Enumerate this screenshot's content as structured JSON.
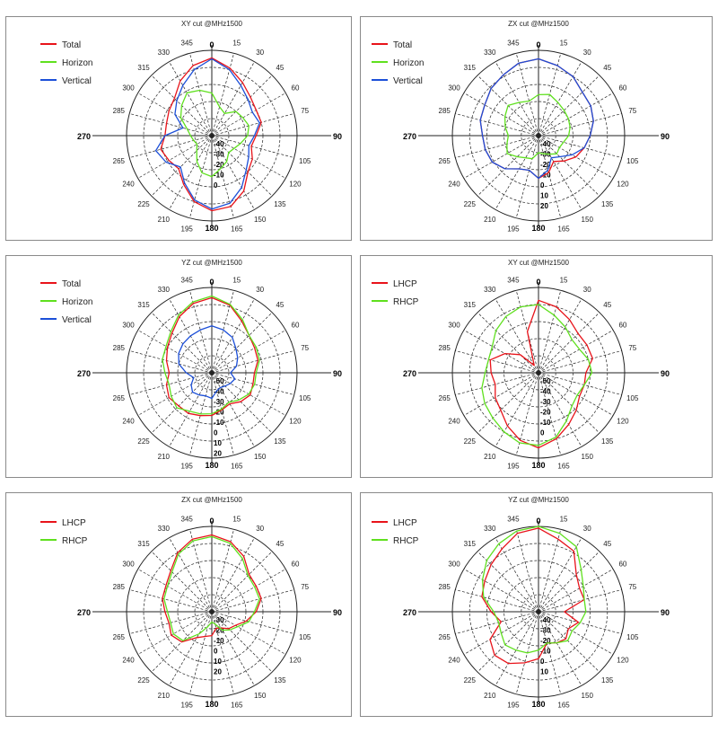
{
  "chart_data": [
    {
      "type": "polar",
      "title": "XY cut @MHz1500",
      "angle_labels": [
        "0",
        "15",
        "30",
        "45",
        "60",
        "75",
        "90",
        "105",
        "120",
        "135",
        "150",
        "165",
        "180",
        "195",
        "210",
        "225",
        "240",
        "265",
        "270",
        "285",
        "300",
        "315",
        "330",
        "345"
      ],
      "radial_labels": [
        "-40",
        "-30",
        "-20",
        "-10",
        "0"
      ],
      "series": [
        {
          "name": "Total",
          "color": "#e8131a",
          "r": [
            0.91,
            0.82,
            0.72,
            0.64,
            0.6,
            0.6,
            0.52,
            0.48,
            0.55,
            0.6,
            0.75,
            0.86,
            0.88,
            0.8,
            0.66,
            0.55,
            0.58,
            0.62,
            0.55,
            0.55,
            0.58,
            0.62,
            0.74,
            0.85
          ]
        },
        {
          "name": "Horizon",
          "color": "#5fe01e",
          "r": [
            0.5,
            0.35,
            0.3,
            0.4,
            0.42,
            0.45,
            0.42,
            0.35,
            0.3,
            0.28,
            0.35,
            0.4,
            0.48,
            0.45,
            0.35,
            0.25,
            0.2,
            0.22,
            0.25,
            0.3,
            0.42,
            0.5,
            0.58,
            0.55
          ]
        },
        {
          "name": "Vertical",
          "color": "#1c4fd8",
          "r": [
            0.9,
            0.8,
            0.68,
            0.6,
            0.55,
            0.58,
            0.5,
            0.45,
            0.5,
            0.57,
            0.7,
            0.82,
            0.86,
            0.78,
            0.64,
            0.52,
            0.62,
            0.68,
            0.55,
            0.35,
            0.5,
            0.58,
            0.68,
            0.8
          ]
        }
      ]
    },
    {
      "type": "polar",
      "title": "ZX cut @MHz1500",
      "angle_labels": [
        "0",
        "15",
        "30",
        "45",
        "60",
        "75",
        "90",
        "105",
        "120",
        "135",
        "150",
        "165",
        "180",
        "195",
        "210",
        "225",
        "240",
        "265",
        "270",
        "285",
        "300",
        "315",
        "330",
        "345"
      ],
      "radial_labels": [
        "-40",
        "-30",
        "-20",
        "-10",
        "0",
        "10",
        "20"
      ],
      "series": [
        {
          "name": "Total",
          "color": "#e8131a",
          "r": [
            0.9,
            0.85,
            0.8,
            0.72,
            0.7,
            0.66,
            0.6,
            0.55,
            0.5,
            0.42,
            0.35,
            0.45,
            0.5,
            0.42,
            0.45,
            0.55,
            0.62,
            0.64,
            0.65,
            0.7,
            0.72,
            0.78,
            0.82,
            0.88
          ]
        },
        {
          "name": "Horizon",
          "color": "#5fe01e",
          "r": [
            0.48,
            0.5,
            0.45,
            0.42,
            0.4,
            0.38,
            0.35,
            0.3,
            0.28,
            0.3,
            0.25,
            0.22,
            0.2,
            0.28,
            0.3,
            0.35,
            0.42,
            0.38,
            0.35,
            0.4,
            0.45,
            0.5,
            0.45,
            0.42
          ]
        },
        {
          "name": "Vertical",
          "color": "#1c4fd8",
          "r": [
            0.9,
            0.85,
            0.8,
            0.72,
            0.7,
            0.66,
            0.6,
            0.55,
            0.45,
            0.35,
            0.3,
            0.42,
            0.5,
            0.42,
            0.45,
            0.55,
            0.62,
            0.64,
            0.65,
            0.7,
            0.72,
            0.78,
            0.82,
            0.88
          ]
        }
      ]
    },
    {
      "type": "polar",
      "title": "YZ cut @MHz1500",
      "angle_labels": [
        "0",
        "15",
        "30",
        "45",
        "60",
        "75",
        "90",
        "105",
        "120",
        "135",
        "150",
        "165",
        "180",
        "195",
        "210",
        "225",
        "240",
        "265",
        "270",
        "285",
        "300",
        "315",
        "330",
        "345"
      ],
      "radial_labels": [
        "-50",
        "-40",
        "-30",
        "-20",
        "-10",
        "0",
        "10",
        "20"
      ],
      "series": [
        {
          "name": "Total",
          "color": "#e8131a",
          "r": [
            0.88,
            0.82,
            0.7,
            0.62,
            0.58,
            0.56,
            0.5,
            0.5,
            0.52,
            0.48,
            0.42,
            0.45,
            0.5,
            0.52,
            0.55,
            0.55,
            0.58,
            0.55,
            0.5,
            0.55,
            0.6,
            0.66,
            0.76,
            0.84
          ]
        },
        {
          "name": "Horizon",
          "color": "#5fe01e",
          "r": [
            0.9,
            0.83,
            0.72,
            0.62,
            0.6,
            0.58,
            0.52,
            0.52,
            0.5,
            0.45,
            0.4,
            0.44,
            0.48,
            0.5,
            0.52,
            0.58,
            0.55,
            0.52,
            0.55,
            0.6,
            0.62,
            0.68,
            0.78,
            0.86
          ]
        },
        {
          "name": "Vertical",
          "color": "#1c4fd8",
          "r": [
            0.55,
            0.52,
            0.48,
            0.4,
            0.35,
            0.3,
            0.22,
            0.28,
            0.25,
            0.22,
            0.2,
            0.22,
            0.3,
            0.28,
            0.3,
            0.32,
            0.28,
            0.22,
            0.3,
            0.4,
            0.45,
            0.48,
            0.5,
            0.52
          ]
        }
      ]
    },
    {
      "type": "polar",
      "title": "XY cut @MHz1500",
      "angle_labels": [
        "0",
        "15",
        "30",
        "45",
        "60",
        "75",
        "90",
        "105",
        "120",
        "135",
        "150",
        "165",
        "180",
        "195",
        "210",
        "225",
        "240",
        "265",
        "270",
        "285",
        "300",
        "315",
        "330",
        "345"
      ],
      "radial_labels": [
        "-50",
        "-40",
        "-30",
        "-20",
        "-10",
        "0"
      ],
      "series": [
        {
          "name": "LHCP",
          "color": "#e8131a",
          "r": [
            0.85,
            0.8,
            0.72,
            0.65,
            0.65,
            0.65,
            0.55,
            0.55,
            0.55,
            0.62,
            0.7,
            0.8,
            0.88,
            0.82,
            0.72,
            0.62,
            0.58,
            0.52,
            0.55,
            0.58,
            0.45,
            0.3,
            0.1,
            0.5
          ]
        },
        {
          "name": "RHCP",
          "color": "#5fe01e",
          "r": [
            0.8,
            0.7,
            0.62,
            0.55,
            0.55,
            0.6,
            0.62,
            0.55,
            0.52,
            0.55,
            0.65,
            0.78,
            0.85,
            0.85,
            0.8,
            0.75,
            0.72,
            0.68,
            0.62,
            0.6,
            0.62,
            0.7,
            0.76,
            0.8
          ]
        }
      ]
    },
    {
      "type": "polar",
      "title": "ZX cut @MHz1500",
      "angle_labels": [
        "0",
        "15",
        "30",
        "45",
        "60",
        "75",
        "90",
        "105",
        "120",
        "135",
        "150",
        "165",
        "180",
        "195",
        "210",
        "225",
        "240",
        "265",
        "270",
        "285",
        "300",
        "315",
        "330",
        "345"
      ],
      "radial_labels": [
        "-30",
        "-20",
        "-10",
        "0",
        "10",
        "20"
      ],
      "series": [
        {
          "name": "LHCP",
          "color": "#e8131a",
          "r": [
            0.9,
            0.85,
            0.75,
            0.62,
            0.6,
            0.6,
            0.52,
            0.42,
            0.32,
            0.28,
            0.22,
            0.2,
            0.28,
            0.3,
            0.35,
            0.5,
            0.55,
            0.52,
            0.55,
            0.6,
            0.62,
            0.68,
            0.8,
            0.88
          ]
        },
        {
          "name": "RHCP",
          "color": "#5fe01e",
          "r": [
            0.88,
            0.83,
            0.72,
            0.6,
            0.58,
            0.58,
            0.5,
            0.45,
            0.35,
            0.3,
            0.25,
            0.15,
            0.12,
            0.18,
            0.3,
            0.48,
            0.52,
            0.5,
            0.52,
            0.58,
            0.6,
            0.66,
            0.78,
            0.86
          ]
        }
      ]
    },
    {
      "type": "polar",
      "title": "YZ cut @MHz1500",
      "angle_labels": [
        "0",
        "15",
        "30",
        "45",
        "60",
        "75",
        "90",
        "105",
        "120",
        "135",
        "150",
        "165",
        "180",
        "195",
        "210",
        "225",
        "240",
        "265",
        "270",
        "285",
        "300",
        "315",
        "330",
        "345"
      ],
      "radial_labels": [
        "-40",
        "-30",
        "-20",
        "-10",
        "0",
        "10"
      ],
      "series": [
        {
          "name": "LHCP",
          "color": "#e8131a",
          "r": [
            0.98,
            0.88,
            0.82,
            0.62,
            0.55,
            0.55,
            0.3,
            0.48,
            0.4,
            0.45,
            0.42,
            0.38,
            0.55,
            0.62,
            0.7,
            0.72,
            0.65,
            0.45,
            0.55,
            0.68,
            0.72,
            0.78,
            0.85,
            0.95
          ]
        },
        {
          "name": "RHCP",
          "color": "#5fe01e",
          "r": [
            1.0,
            0.95,
            0.88,
            0.7,
            0.6,
            0.55,
            0.55,
            0.5,
            0.45,
            0.48,
            0.42,
            0.38,
            0.45,
            0.5,
            0.52,
            0.55,
            0.5,
            0.48,
            0.52,
            0.66,
            0.75,
            0.85,
            0.92,
            0.98
          ]
        }
      ]
    }
  ]
}
